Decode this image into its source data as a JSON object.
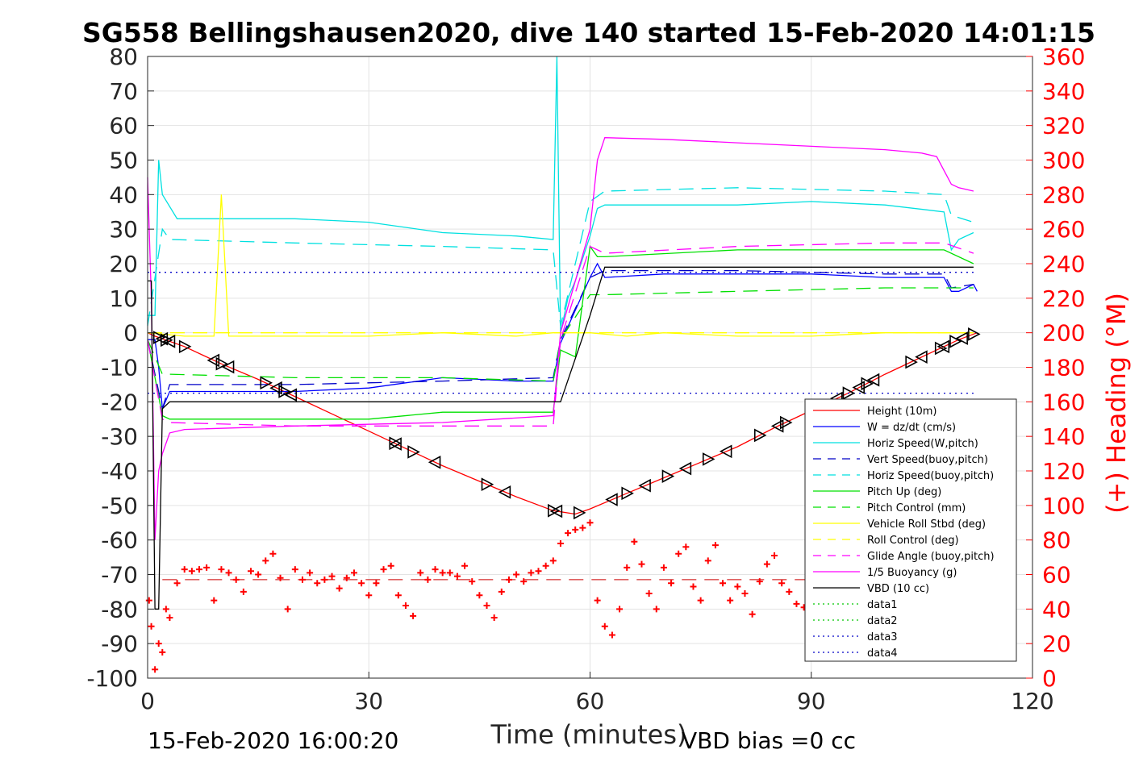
{
  "chart_data": {
    "type": "line",
    "title": "SG558 Bellingshausen2020, dive 140 started 15-Feb-2020 14:01:15",
    "xlabel": "Time (minutes)",
    "ylabel_right": "(+) Heading (°M)",
    "footer_left": "15-Feb-2020 16:00:20",
    "footer_right": "VBD bias =0 cc",
    "xlim": [
      0,
      120
    ],
    "ylim_left": [
      -100,
      80
    ],
    "ylim_right": [
      0,
      360
    ],
    "xticks": [
      0,
      30,
      60,
      90,
      120
    ],
    "yticks_left": [
      80,
      70,
      60,
      50,
      40,
      30,
      20,
      10,
      0,
      -10,
      -20,
      -30,
      -40,
      -50,
      -60,
      -70,
      -80,
      -90,
      -100
    ],
    "yticks_right": [
      360,
      340,
      320,
      300,
      280,
      260,
      240,
      220,
      200,
      180,
      160,
      140,
      120,
      100,
      80,
      60,
      40,
      20,
      0
    ],
    "grid": true,
    "legend_position": "lower-right",
    "series": [
      {
        "name": "Height (10m)",
        "color": "#ff0000",
        "style": "solid",
        "x": [
          0,
          1,
          5,
          10,
          15,
          20,
          25,
          30,
          35,
          40,
          45,
          50,
          55,
          58,
          60,
          65,
          70,
          75,
          80,
          85,
          90,
          95,
          100,
          105,
          110,
          112.5
        ],
        "y": [
          0,
          -1,
          -4,
          -9,
          -13.5,
          -18.5,
          -23.5,
          -28.5,
          -33.5,
          -38.5,
          -43,
          -47.5,
          -51.5,
          -52.5,
          -51,
          -46.5,
          -42,
          -37.5,
          -33,
          -27.5,
          -22.5,
          -17.5,
          -12,
          -7,
          -2,
          0
        ]
      },
      {
        "name": "W = dz/dt (cm/s)",
        "color": "#0000ff",
        "style": "solid",
        "x": [
          0,
          1,
          1.5,
          2,
          3,
          10,
          20,
          30,
          40,
          50,
          55,
          56,
          60,
          61,
          62,
          70,
          80,
          90,
          100,
          108,
          109,
          110,
          112,
          112.5
        ],
        "y": [
          -2,
          -2,
          -10,
          -22,
          -17,
          -17,
          -17,
          -16,
          -13,
          -14,
          -14,
          -3,
          16,
          20,
          16,
          17,
          17,
          17,
          16,
          16,
          12,
          12,
          14,
          12
        ]
      },
      {
        "name": "Horiz Speed(W,pitch)",
        "color": "#00e0e0",
        "style": "solid",
        "x": [
          0,
          1,
          1.5,
          2,
          4,
          10,
          20,
          30,
          40,
          50,
          55,
          55.5,
          56,
          57,
          58,
          60,
          61,
          62,
          70,
          80,
          90,
          100,
          108,
          109,
          110,
          112
        ],
        "y": [
          5,
          5,
          50,
          40,
          33,
          33,
          33,
          32,
          29,
          28,
          27,
          80,
          0,
          10,
          15,
          28,
          36,
          37,
          37,
          37,
          38,
          37,
          35,
          24,
          27,
          29
        ]
      },
      {
        "name": "Vert Speed(buoy,pitch)",
        "color": "#0000c8",
        "style": "dashed",
        "x": [
          0,
          2,
          3,
          20,
          40,
          55,
          56,
          60,
          62,
          80,
          100,
          108,
          109,
          112
        ],
        "y": [
          -2,
          -22,
          -15,
          -15,
          -14,
          -13,
          -2,
          16,
          18,
          18,
          17,
          17,
          13,
          14
        ]
      },
      {
        "name": "Horiz Speed(buoy,pitch)",
        "color": "#00e0e0",
        "style": "dashed",
        "x": [
          0,
          2,
          3,
          20,
          40,
          55,
          56,
          60,
          62,
          80,
          100,
          108,
          109,
          112
        ],
        "y": [
          2,
          30,
          27,
          26,
          25,
          24,
          2,
          38,
          41,
          42,
          41,
          40,
          34,
          32
        ]
      },
      {
        "name": "Pitch Up (deg)",
        "color": "#00e000",
        "style": "solid",
        "x": [
          0,
          2,
          3,
          20,
          30,
          40,
          55,
          56,
          58,
          60,
          61,
          62,
          80,
          100,
          108,
          112
        ],
        "y": [
          -2,
          -24,
          -25,
          -25,
          -25,
          -23,
          -23,
          -5,
          -7,
          25,
          22,
          22,
          24,
          24,
          24,
          20
        ]
      },
      {
        "name": "Pitch Control (mm)",
        "color": "#00e000",
        "style": "dashed",
        "x": [
          0,
          2,
          3,
          20,
          40,
          55,
          56,
          60,
          62,
          80,
          100,
          108,
          112
        ],
        "y": [
          -2,
          -12,
          -12,
          -13,
          -13,
          -14,
          -2,
          11,
          11,
          12,
          13,
          13,
          13
        ]
      },
      {
        "name": "Vehicle Roll Stbd (deg)",
        "color": "#ffff00",
        "style": "solid",
        "x": [
          0,
          5,
          9,
          10,
          11,
          20,
          30,
          40,
          50,
          55,
          60,
          65,
          70,
          80,
          90,
          100,
          110,
          112
        ],
        "y": [
          0,
          -1,
          -1,
          40,
          -1,
          -1,
          -1,
          0,
          -1,
          0,
          0,
          -1,
          0,
          -1,
          -1,
          0,
          0,
          0
        ]
      },
      {
        "name": "Roll Control (deg)",
        "color": "#ffff00",
        "style": "dashed",
        "x": [
          0,
          5,
          15,
          25,
          35,
          45,
          55,
          65,
          75,
          85,
          95,
          105,
          112
        ],
        "y": [
          0,
          0,
          0,
          0,
          0,
          0,
          0,
          0,
          0,
          0,
          0,
          0,
          0
        ]
      },
      {
        "name": "Glide Angle (buoy,pitch)",
        "color": "#ff00ff",
        "style": "dashed",
        "x": [
          0,
          2,
          3,
          20,
          40,
          55,
          56,
          60,
          62,
          80,
          100,
          108,
          112
        ],
        "y": [
          -2,
          -25,
          -26,
          -27,
          -27,
          -27,
          -2,
          25,
          23,
          25,
          26,
          26,
          23
        ]
      },
      {
        "name": "1/5 Buoyancy (g)",
        "color": "#ff00ff",
        "style": "solid",
        "x": [
          0,
          0.5,
          1,
          1.5,
          2,
          3,
          5,
          20,
          40,
          55,
          56,
          60,
          61,
          62,
          70,
          80,
          90,
          100,
          105,
          107,
          108,
          109,
          110,
          112
        ],
        "y": [
          45,
          10,
          -60,
          -40,
          -35,
          -29,
          -28,
          -27,
          -26,
          -24,
          0,
          30,
          50,
          56.5,
          56,
          55,
          54,
          53,
          52,
          51,
          47,
          43,
          42,
          41
        ]
      },
      {
        "name": "VBD (10 cc)",
        "color": "#000000",
        "style": "solid",
        "x": [
          0,
          0.5,
          1,
          1.5,
          2,
          3,
          55,
          56,
          60,
          61,
          62,
          108,
          109,
          112
        ],
        "y": [
          15,
          15,
          -80,
          -80,
          -22,
          -20,
          -20,
          -20,
          5,
          12,
          19,
          19,
          19,
          19
        ]
      },
      {
        "name": "data1",
        "color": "#00c800",
        "style": "dotted",
        "x": [],
        "y": []
      },
      {
        "name": "data2",
        "color": "#00c800",
        "style": "dotted",
        "x": [],
        "y": []
      },
      {
        "name": "data3",
        "color": "#0000c8",
        "style": "dotted",
        "x": [
          0,
          112
        ],
        "y": [
          17.5,
          17.5
        ]
      },
      {
        "name": "data4",
        "color": "#0000c8",
        "style": "dotted",
        "x": [
          0,
          112
        ],
        "y": [
          -17.5,
          -17.5
        ]
      }
    ],
    "heading_series": {
      "color": "#ff0000",
      "marker": "+",
      "axis": "right",
      "x": [
        0.2,
        0.5,
        1,
        1.5,
        2,
        2.5,
        3,
        4,
        5,
        6,
        7,
        8,
        9,
        10,
        11,
        12,
        13,
        14,
        15,
        16,
        17,
        18,
        19,
        20,
        21,
        22,
        23,
        24,
        25,
        26,
        27,
        28,
        29,
        30,
        31,
        32,
        33,
        34,
        35,
        36,
        37,
        38,
        39,
        40,
        41,
        42,
        43,
        44,
        45,
        46,
        47,
        48,
        49,
        50,
        51,
        52,
        53,
        54,
        55,
        56,
        57,
        58,
        59,
        60,
        61,
        62,
        63,
        64,
        65,
        66,
        67,
        68,
        69,
        70,
        71,
        72,
        73,
        74,
        75,
        76,
        77,
        78,
        79,
        80,
        81,
        82,
        83,
        84,
        85,
        86,
        87,
        88,
        89,
        90
      ],
      "y": [
        45,
        30,
        5,
        20,
        15,
        40,
        35,
        55,
        63,
        62,
        63,
        64,
        45,
        63,
        61,
        57,
        50,
        62,
        60,
        68,
        72,
        58,
        40,
        63,
        57,
        61,
        55,
        57,
        59,
        52,
        58,
        61,
        55,
        48,
        55,
        63,
        65,
        48,
        42,
        36,
        61,
        57,
        63,
        61,
        61,
        59,
        65,
        56,
        48,
        42,
        35,
        50,
        57,
        60,
        56,
        61,
        62,
        65,
        68,
        78,
        84,
        86,
        87,
        90,
        45,
        30,
        25,
        40,
        64,
        79,
        66,
        49,
        40,
        64,
        55,
        72,
        76,
        53,
        45,
        68,
        77,
        55,
        45,
        53,
        49,
        37,
        56,
        66,
        71,
        55,
        50,
        43,
        41,
        38
      ]
    },
    "markers": {
      "color": "#000000",
      "shapes": [
        "triangle-right",
        "triangle-left"
      ],
      "x": [
        1.5,
        2,
        2.5,
        3,
        5,
        9,
        10,
        11,
        16,
        17.5,
        18.5,
        19.5,
        33.5,
        33.7,
        36,
        39,
        46,
        48.5,
        55,
        55.5,
        58.5,
        63,
        65,
        67.5,
        70.5,
        73,
        76,
        78.5,
        83,
        85.5,
        86.5,
        93.5,
        95,
        96.5,
        97.5,
        98.5,
        103.5,
        105,
        107.5,
        108,
        109.5,
        110.5,
        112
      ]
    }
  }
}
